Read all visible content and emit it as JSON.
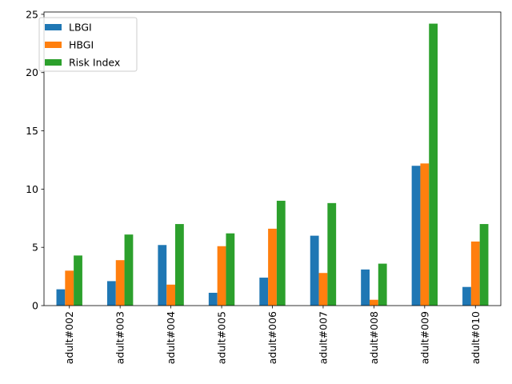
{
  "chart_data": {
    "type": "bar",
    "categories": [
      "adult#002",
      "adult#003",
      "adult#004",
      "adult#005",
      "adult#006",
      "adult#007",
      "adult#008",
      "adult#009",
      "adult#010"
    ],
    "series": [
      {
        "name": "LBGI",
        "color": "#1f77b4",
        "values": [
          1.4,
          2.1,
          5.2,
          1.1,
          2.4,
          6.0,
          3.1,
          12.0,
          1.6
        ]
      },
      {
        "name": "HBGI",
        "color": "#ff7f0e",
        "values": [
          3.0,
          3.9,
          1.8,
          5.1,
          6.6,
          2.8,
          0.5,
          12.2,
          5.5
        ]
      },
      {
        "name": "Risk Index",
        "color": "#2ca02c",
        "values": [
          4.3,
          6.1,
          7.0,
          6.2,
          9.0,
          8.8,
          3.6,
          24.2,
          7.0
        ]
      }
    ],
    "ylim": [
      0,
      25.2
    ],
    "yticks": [
      0,
      5,
      10,
      15,
      20,
      25
    ],
    "legend_position": "top-left",
    "grid": false,
    "title": "",
    "xlabel": "",
    "ylabel": ""
  }
}
